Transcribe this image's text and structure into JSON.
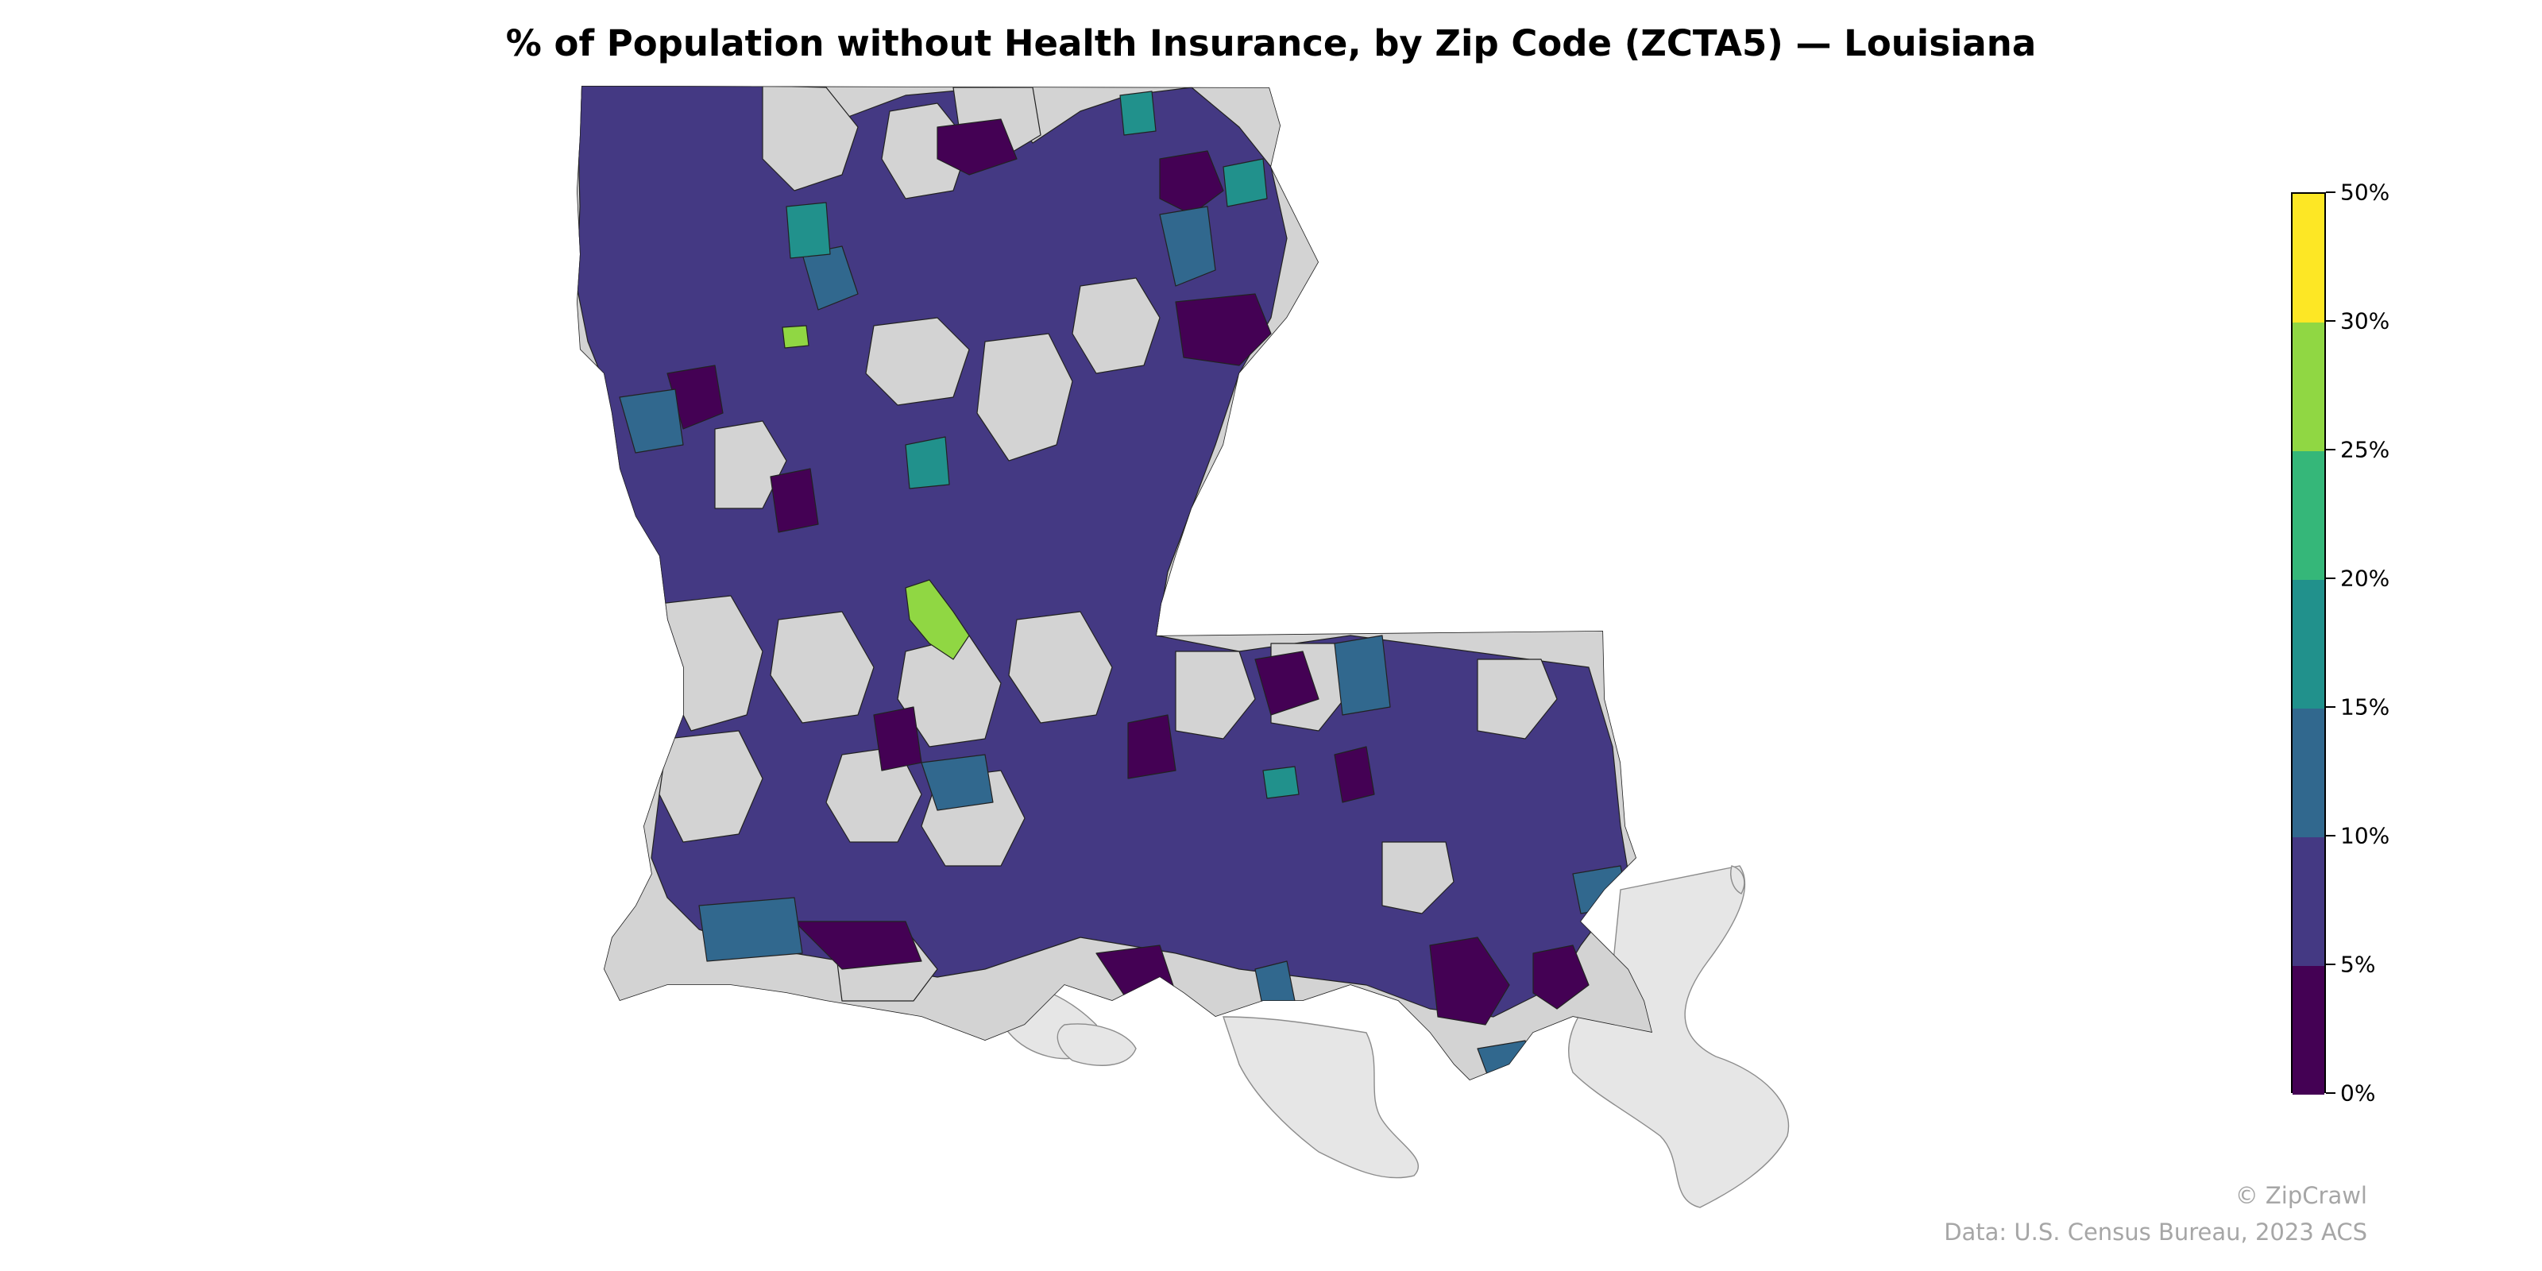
{
  "title": "% of Population without Health Insurance, by Zip Code (ZCTA5) — Louisiana",
  "legend": {
    "bins": [
      {
        "label": "0%",
        "color": "#440154"
      },
      {
        "label": "5%",
        "color": "#443983"
      },
      {
        "label": "10%",
        "color": "#31688e"
      },
      {
        "label": "15%",
        "color": "#21918c"
      },
      {
        "label": "20%",
        "color": "#35b779"
      },
      {
        "label": "25%",
        "color": "#90d743"
      },
      {
        "label": "30%",
        "color": "#fde725"
      },
      {
        "label": "50%",
        "color": ""
      }
    ]
  },
  "no_data_color": "#d3d3d3",
  "credit": "© ZipCrawl",
  "source": "Data: U.S. Census Bureau, 2023 ACS"
}
